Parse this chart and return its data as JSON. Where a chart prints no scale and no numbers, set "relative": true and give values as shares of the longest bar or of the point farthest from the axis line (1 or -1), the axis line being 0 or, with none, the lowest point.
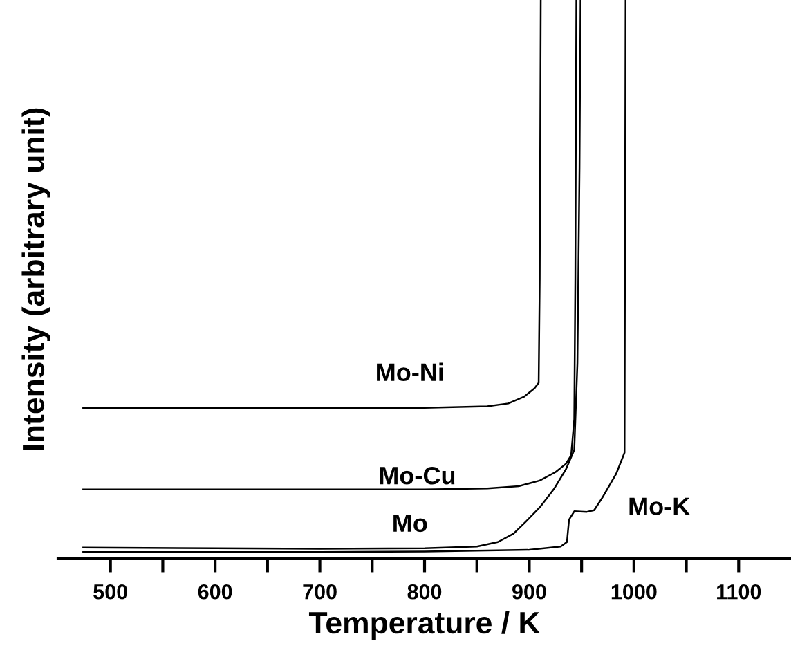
{
  "chart_data": {
    "type": "line",
    "relative": true,
    "xlabel": "Temperature / K",
    "ylabel": "Intensity (arbitrary unit)",
    "xlim": [
      450,
      1150
    ],
    "xticks": [
      500,
      {
        "value": 550,
        "label": null
      },
      600,
      {
        "value": 650,
        "label": null
      },
      700,
      {
        "value": 750,
        "label": null
      },
      800,
      {
        "value": 850,
        "label": null
      },
      900,
      {
        "value": 950,
        "label": null
      },
      1000,
      {
        "value": 1050,
        "label": null
      },
      1100
    ],
    "grid": false,
    "legend": false,
    "marker": "none",
    "line_style": "solid",
    "series": [
      {
        "name": "Mo-Ni",
        "color": "#000000",
        "x": [
          474,
          600,
          700,
          800,
          860,
          880,
          895,
          905,
          909,
          910,
          911
        ],
        "values": [
          0.27,
          0.27,
          0.27,
          0.27,
          0.273,
          0.278,
          0.29,
          0.305,
          0.315,
          0.5,
          1
        ]
      },
      {
        "name": "Mo-Cu",
        "color": "#000000",
        "x": [
          474,
          600,
          700,
          800,
          860,
          890,
          910,
          925,
          935,
          940,
          943,
          944,
          945
        ],
        "values": [
          0.124,
          0.124,
          0.124,
          0.124,
          0.126,
          0.13,
          0.14,
          0.155,
          0.17,
          0.185,
          0.25,
          0.5,
          1
        ]
      },
      {
        "name": "Mo",
        "color": "#000000",
        "x": [
          474,
          600,
          700,
          800,
          850,
          870,
          885,
          897,
          910,
          924,
          935,
          943,
          946,
          948,
          949
        ],
        "values": [
          0.02,
          0.019,
          0.018,
          0.019,
          0.022,
          0.03,
          0.045,
          0.067,
          0.092,
          0.126,
          0.16,
          0.195,
          0.35,
          0.7,
          1
        ]
      },
      {
        "name": "Mo-K",
        "color": "#000000",
        "x": [
          474,
          600,
          700,
          800,
          900,
          930,
          936,
          938,
          943,
          955,
          962,
          970,
          983,
          991,
          992
        ],
        "values": [
          0.012,
          0.012,
          0.012,
          0.013,
          0.016,
          0.022,
          0.03,
          0.07,
          0.085,
          0.084,
          0.087,
          0.11,
          0.152,
          0.19,
          1
        ]
      }
    ]
  }
}
